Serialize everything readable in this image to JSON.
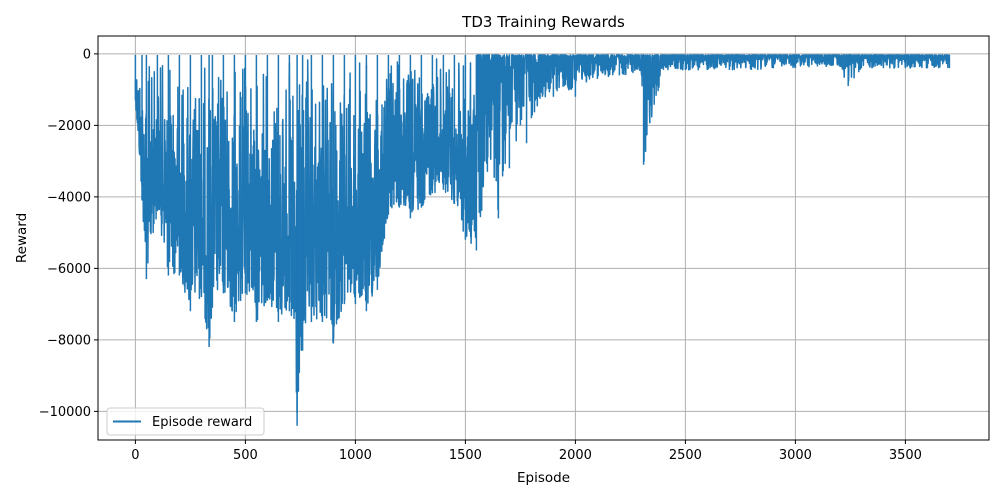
{
  "chart_data": {
    "type": "line",
    "title": "TD3 Training Rewards",
    "xlabel": "Episode",
    "ylabel": "Reward",
    "xlim": [
      -170,
      3880
    ],
    "ylim": [
      -10800,
      500
    ],
    "xticks": [
      0,
      500,
      1000,
      1500,
      2000,
      2500,
      3000,
      3500
    ],
    "yticks": [
      0,
      -2000,
      -4000,
      -6000,
      -8000,
      -10000
    ],
    "ytick_labels": [
      "0",
      "−2000",
      "−4000",
      "−6000",
      "−8000",
      "−10000"
    ],
    "grid": true,
    "legend": {
      "position": "lower-left",
      "entries": [
        "Episode reward"
      ]
    },
    "series": [
      {
        "name": "Episode reward",
        "color": "#1f77b4",
        "n_episodes": 3700,
        "envelope_note": "noisy episode rewards; lower envelope sampled from figure",
        "envelope": {
          "x": [
            0,
            30,
            50,
            100,
            150,
            200,
            250,
            300,
            335,
            350,
            400,
            450,
            500,
            550,
            600,
            650,
            700,
            735,
            760,
            800,
            850,
            900,
            950,
            1000,
            1050,
            1100,
            1150,
            1200,
            1250,
            1300,
            1350,
            1400,
            1450,
            1500,
            1550,
            1600,
            1650,
            1700,
            1750,
            1778,
            1800,
            1850,
            1900,
            1950,
            2000,
            2050,
            2100,
            2200,
            2300,
            2310,
            2400,
            2500,
            2600,
            2700,
            2800,
            2900,
            3000,
            3100,
            3200,
            3240,
            3300,
            3400,
            3500,
            3600,
            3700
          ],
          "min": [
            -1300,
            -4100,
            -6300,
            -4400,
            -6200,
            -6200,
            -7200,
            -6800,
            -8200,
            -7100,
            -6700,
            -7500,
            -6700,
            -7500,
            -6900,
            -7500,
            -7200,
            -10400,
            -8300,
            -7500,
            -7500,
            -8100,
            -7000,
            -7000,
            -7200,
            -6600,
            -4500,
            -4300,
            -4600,
            -4300,
            -3900,
            -3800,
            -4200,
            -5200,
            -5500,
            -3300,
            -4600,
            -3200,
            -2000,
            -2500,
            -1800,
            -1200,
            -1200,
            -900,
            -1200,
            -800,
            -700,
            -600,
            -550,
            -3100,
            -450,
            -450,
            -450,
            -450,
            -450,
            -400,
            -400,
            -350,
            -350,
            -900,
            -400,
            -400,
            -400,
            -400,
            -400
          ],
          "typical_max": -30
        }
      }
    ]
  }
}
